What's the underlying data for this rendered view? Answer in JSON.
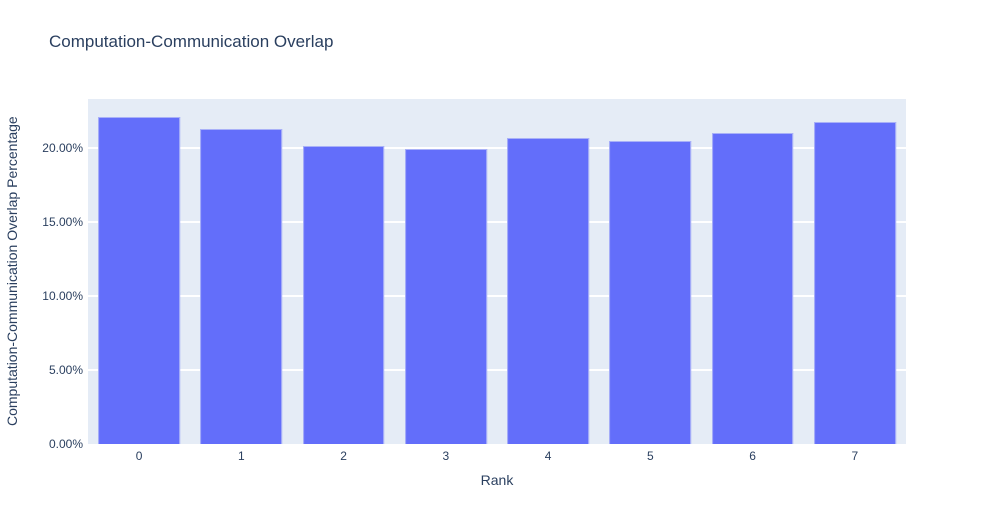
{
  "chart_data": {
    "type": "bar",
    "title": "Computation-Communication Overlap",
    "xlabel": "Rank",
    "ylabel": "Computation-Communication Overlap Percentage",
    "categories": [
      "0",
      "1",
      "2",
      "3",
      "4",
      "5",
      "6",
      "7"
    ],
    "values": [
      22.1,
      21.33,
      20.18,
      19.95,
      20.72,
      20.5,
      21.02,
      21.8
    ],
    "values_unit": "%",
    "ylim": [
      0,
      23.33
    ],
    "yticks": [
      {
        "value": 0,
        "label": "0.00%"
      },
      {
        "value": 5,
        "label": "5.00%"
      },
      {
        "value": 10,
        "label": "10.00%"
      },
      {
        "value": 15,
        "label": "15.00%"
      },
      {
        "value": 20,
        "label": "20.00%"
      }
    ],
    "grid": true,
    "legend": false,
    "colors": {
      "bar": "#636efa",
      "bar_border": "#a9b1f8",
      "plot_background": "#e5ecf6",
      "gridline": "#ffffff",
      "text": "#2a3f5f",
      "page_background": "#ffffff"
    }
  }
}
